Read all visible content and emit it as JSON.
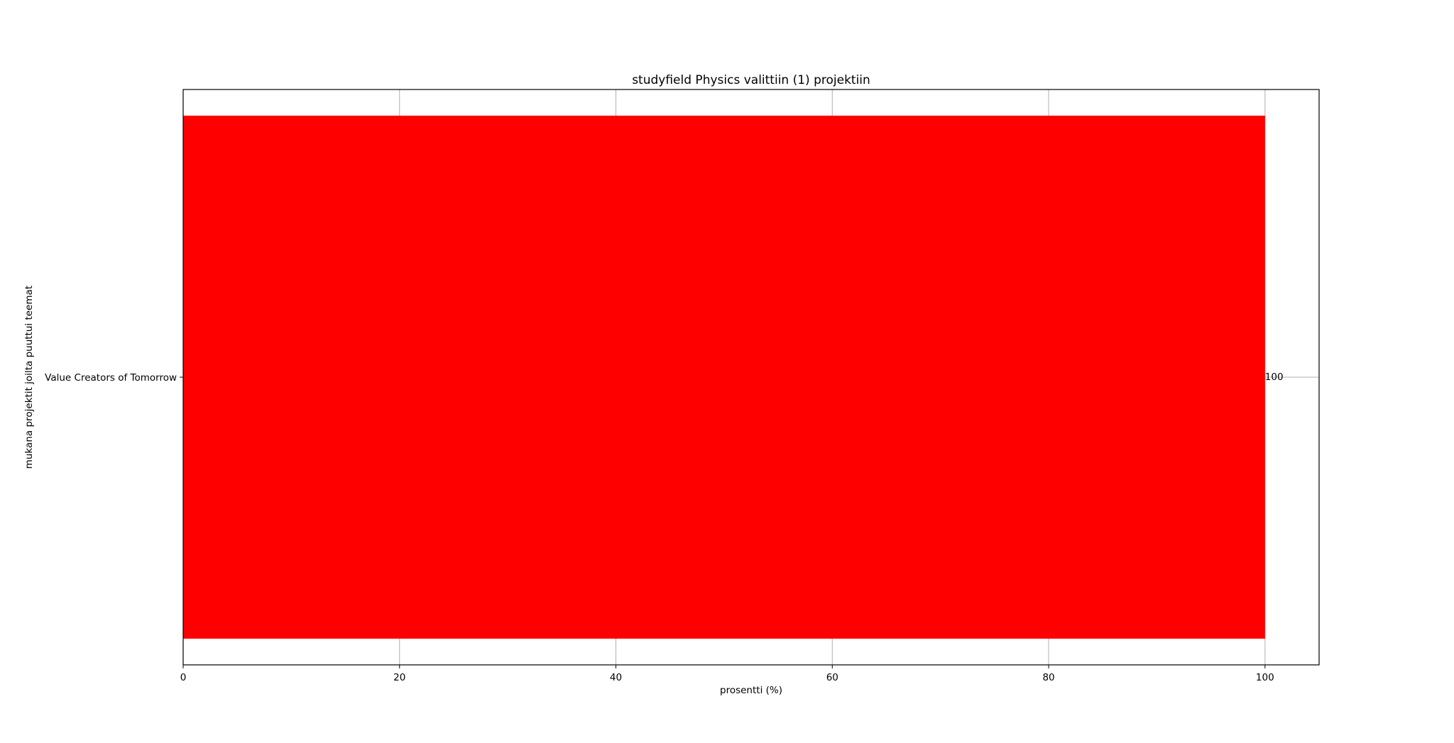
{
  "chart_data": {
    "type": "bar",
    "orientation": "horizontal",
    "title": "studyfield Physics valittiin (1) projektiin",
    "xlabel": "prosentti (%)",
    "ylabel": "mukana projektit joilta puuttui teemat",
    "categories": [
      "Value Creators of Tomorrow"
    ],
    "values": [
      100
    ],
    "data_labels": [
      "100"
    ],
    "xlim": [
      0,
      105
    ],
    "xticks": [
      0,
      20,
      40,
      60,
      80,
      100
    ],
    "xtick_labels": [
      "0",
      "20",
      "40",
      "60",
      "80",
      "100"
    ],
    "grid": true,
    "legend": false,
    "bar_color": "#ff0000",
    "grid_color": "#b0b0b0"
  }
}
